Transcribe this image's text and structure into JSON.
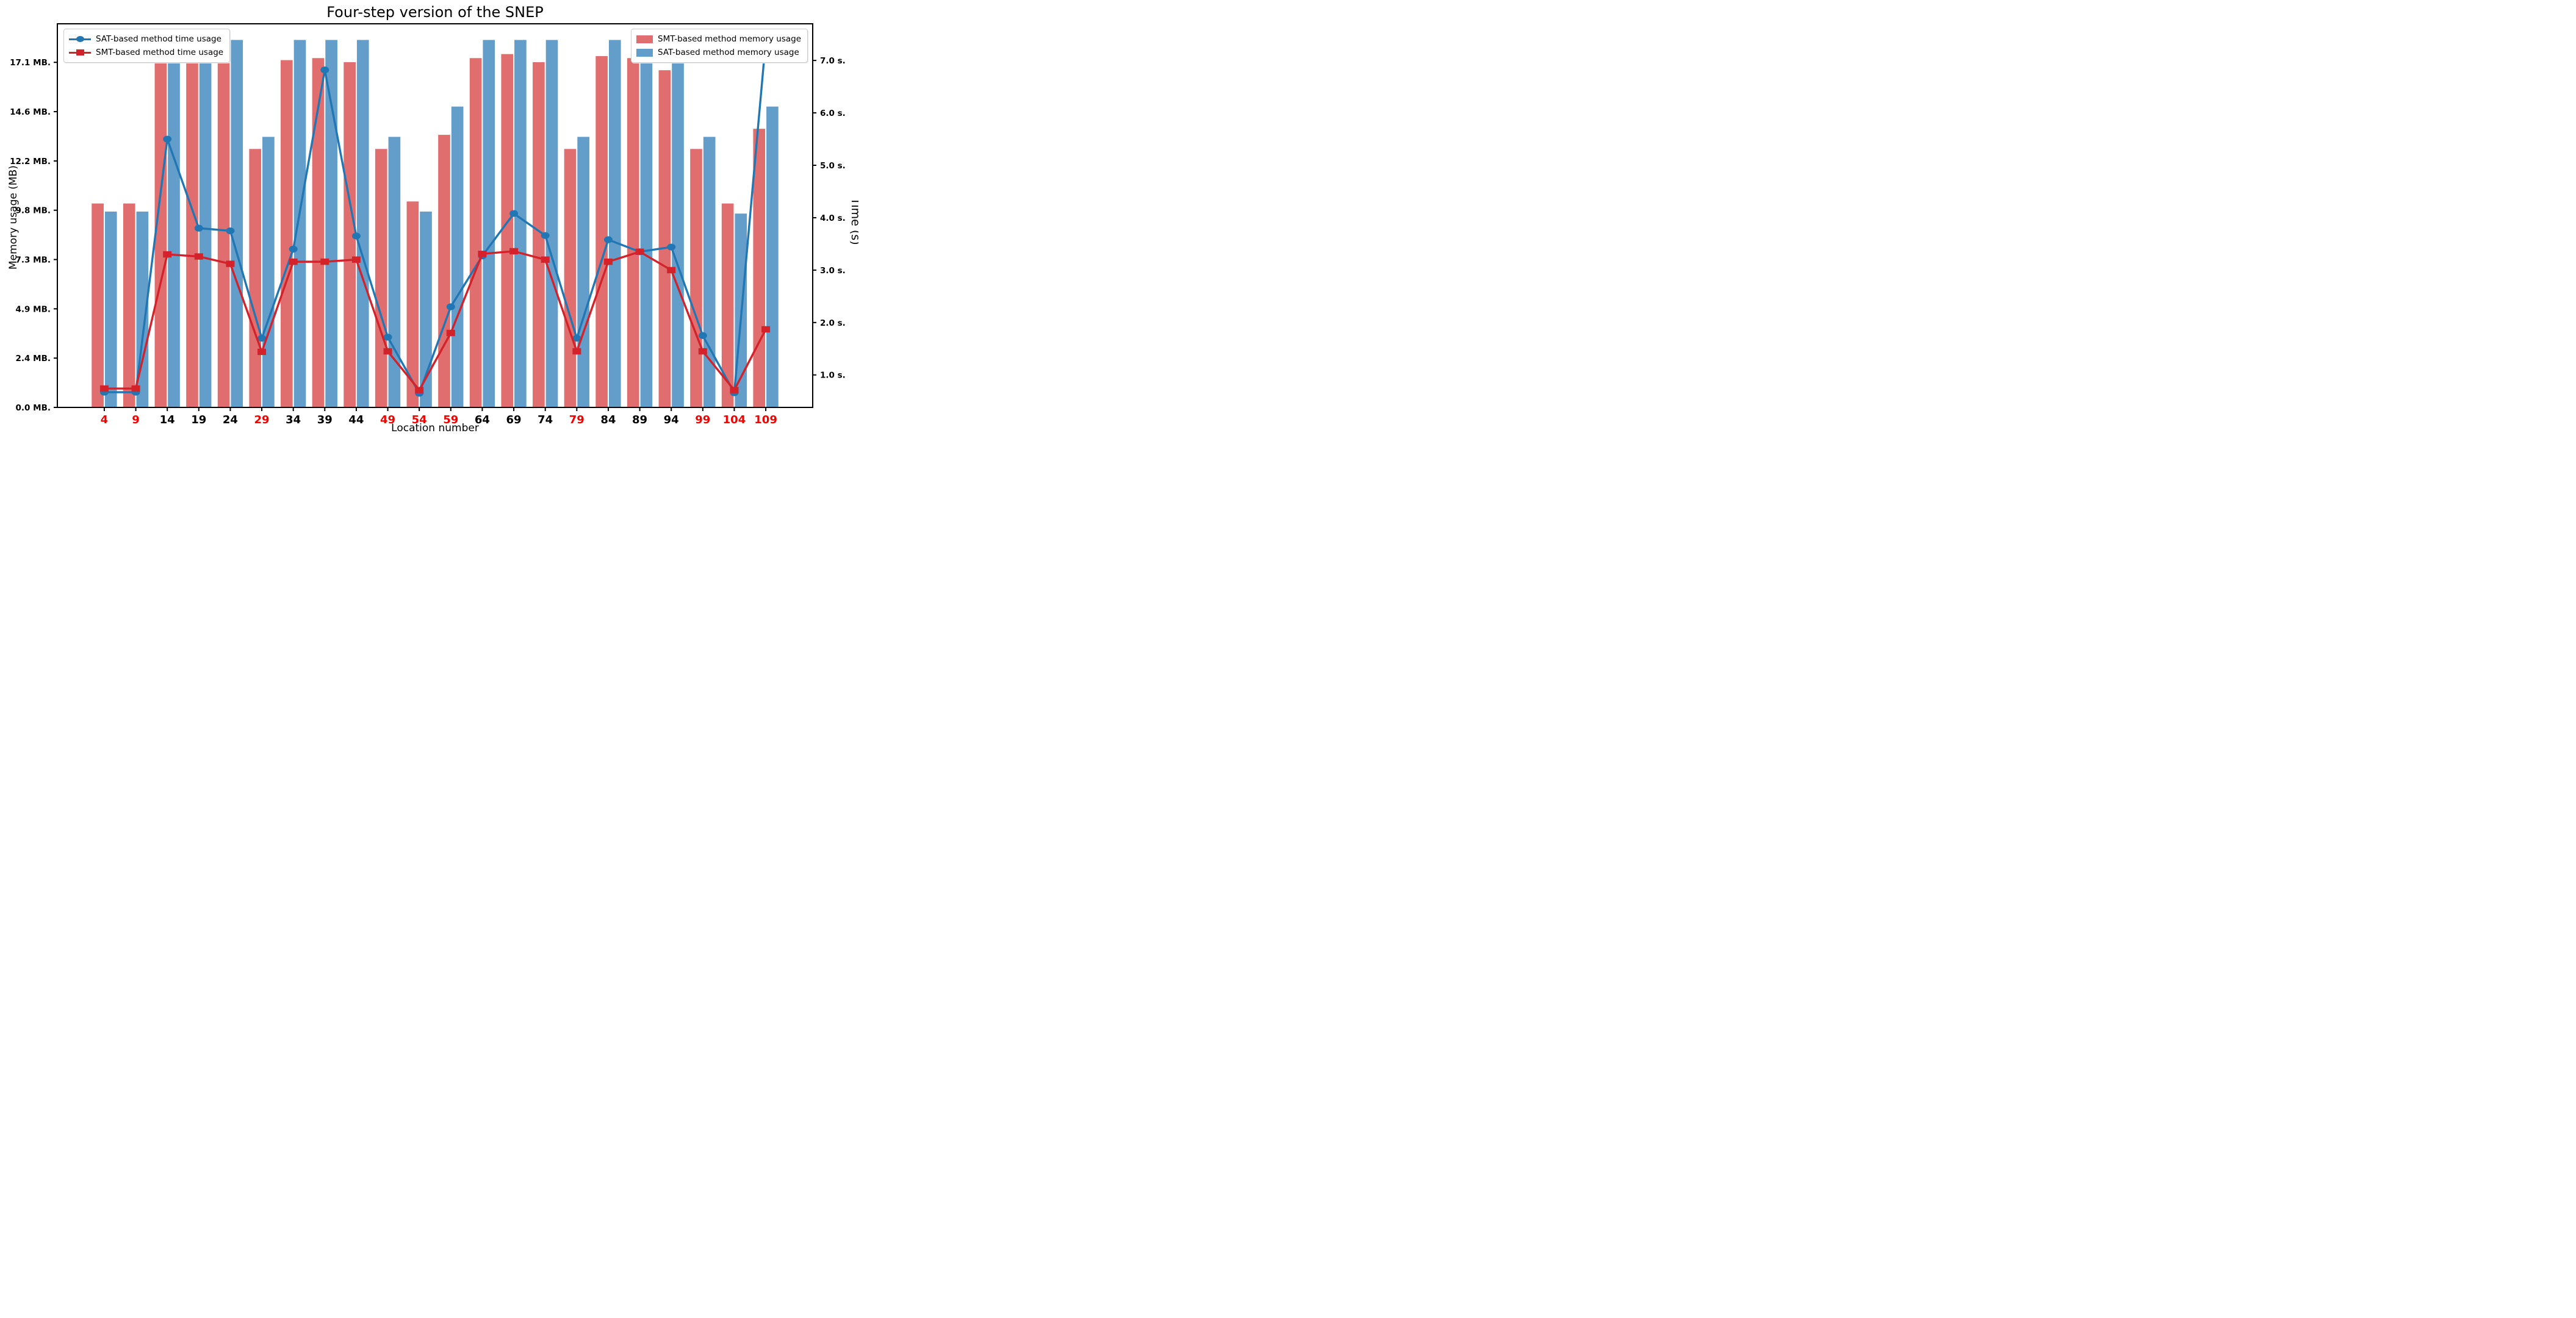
{
  "figure": {
    "title": "Four-step version of the SNEP",
    "x_axis_label": "Location number",
    "y_left_axis_label": "Memory usage (MB)",
    "y_right_axis_label": "Time (s)"
  },
  "legend_time": {
    "items": [
      {
        "label": "SAT-based method time usage",
        "marker": "circle",
        "color": "#2077b4"
      },
      {
        "label": "SMT-based method time usage",
        "marker": "square",
        "color": "#d3222a"
      }
    ]
  },
  "legend_memory": {
    "items": [
      {
        "label": "SMT-based method memory usage",
        "color": "#e06e6e"
      },
      {
        "label": "SAT-based method memory usage",
        "color": "#639dca"
      }
    ]
  },
  "chart_data": {
    "type": "bar",
    "subtype": "grouped bars (memory, left axis) + two marker lines (time, right axis)",
    "title": "Four-step version of the SNEP",
    "xlabel": "Location number",
    "ylabel_left": "Memory usage (MB)",
    "ylabel_right": "Time (s)",
    "grid": false,
    "categories": [
      4,
      9,
      14,
      19,
      24,
      29,
      34,
      39,
      44,
      49,
      54,
      59,
      64,
      69,
      74,
      79,
      84,
      89,
      94,
      99,
      104,
      109
    ],
    "x_ticks_red": [
      4,
      9,
      29,
      49,
      54,
      59,
      79,
      99,
      104,
      109
    ],
    "x_tick_black_color": "#000000",
    "x_tick_red_color": "#f40000",
    "series": [
      {
        "name": "SMT-based method memory usage",
        "type": "bar",
        "axis": "left",
        "color": "#e06e6e",
        "values": [
          10.1,
          10.1,
          17.2,
          17.4,
          17.4,
          12.8,
          17.2,
          17.3,
          17.1,
          12.8,
          10.2,
          13.5,
          17.3,
          17.5,
          17.1,
          12.8,
          17.4,
          17.3,
          16.7,
          12.8,
          10.1,
          13.8
        ]
      },
      {
        "name": "SAT-based method memory usage",
        "type": "bar",
        "axis": "left",
        "color": "#639dca",
        "values": [
          9.7,
          9.7,
          18.2,
          18.2,
          18.2,
          13.4,
          18.2,
          18.2,
          18.2,
          13.4,
          9.7,
          14.9,
          18.2,
          18.2,
          18.2,
          13.4,
          18.2,
          18.2,
          18.2,
          13.4,
          9.6,
          14.9
        ]
      },
      {
        "name": "SAT-based method time usage",
        "type": "line",
        "axis": "right",
        "marker": "circle",
        "color": "#2077b4",
        "values": [
          0.67,
          0.67,
          5.5,
          3.8,
          3.75,
          1.7,
          3.4,
          6.82,
          3.65,
          1.72,
          0.65,
          2.3,
          3.27,
          4.08,
          3.66,
          1.7,
          3.58,
          3.35,
          3.44,
          1.75,
          0.66,
          7.38
        ]
      },
      {
        "name": "SMT-based method time usage",
        "type": "line",
        "axis": "right",
        "marker": "square",
        "color": "#d3222a",
        "values": [
          0.74,
          0.74,
          3.3,
          3.26,
          3.12,
          1.44,
          3.16,
          3.16,
          3.2,
          1.45,
          0.71,
          1.8,
          3.31,
          3.36,
          3.2,
          1.45,
          3.16,
          3.35,
          3.0,
          1.45,
          0.71,
          1.87
        ]
      }
    ],
    "left_axis": {
      "range": [
        0.0,
        19.0
      ],
      "ticks": [
        {
          "value": 0.0,
          "label": "0.0 MB."
        },
        {
          "value": 2.4414,
          "label": "2.4 MB."
        },
        {
          "value": 4.8828,
          "label": "4.9 MB."
        },
        {
          "value": 7.3242,
          "label": "7.3 MB."
        },
        {
          "value": 9.7656,
          "label": "9.8 MB."
        },
        {
          "value": 12.207,
          "label": "12.2 MB."
        },
        {
          "value": 14.6484,
          "label": "14.6 MB."
        },
        {
          "value": 17.0898,
          "label": "17.1 MB."
        }
      ]
    },
    "right_axis": {
      "range": [
        0.38,
        7.7
      ],
      "ticks": [
        {
          "value": 1.0,
          "label": "1.0 s."
        },
        {
          "value": 2.0,
          "label": "2.0 s."
        },
        {
          "value": 3.0,
          "label": "3.0 s."
        },
        {
          "value": 4.0,
          "label": "4.0 s."
        },
        {
          "value": 5.0,
          "label": "5.0 s."
        },
        {
          "value": 6.0,
          "label": "6.0 s."
        },
        {
          "value": 7.0,
          "label": "7.0 s."
        }
      ]
    },
    "x_axis_units_range": [
      -3.45,
      116.45
    ],
    "bar_width_units": 2,
    "legend_positions": [
      "upper left: time series",
      "upper right: memory series"
    ]
  }
}
